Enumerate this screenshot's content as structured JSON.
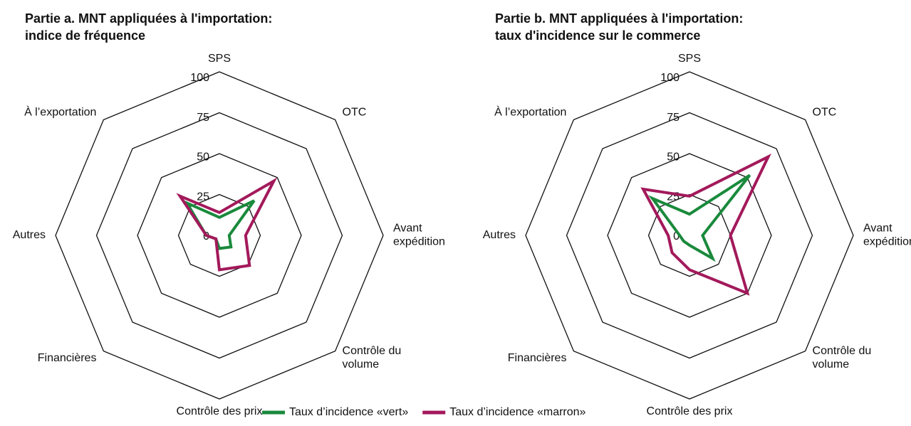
{
  "chart_data": [
    {
      "type": "radar",
      "title": "Partie a. MNT appliquées à l'importation:",
      "subtitle": "indice de fréquence",
      "categories": [
        "SPS",
        "OTC",
        "Avant expédition",
        "Contrôle du volume",
        "Contrôle des prix",
        "Financières",
        "Autres",
        "À l’exportation"
      ],
      "ylim": [
        0,
        100
      ],
      "yticks": [
        0,
        25,
        50,
        75,
        100
      ],
      "series": [
        {
          "name": "Taux d’incidence «vert»",
          "color": "#1a8a3c",
          "values": [
            11,
            30,
            6,
            10,
            8,
            3,
            8,
            28
          ]
        },
        {
          "name": "Taux d’incidence «marron»",
          "color": "#a3195b",
          "values": [
            14,
            47,
            16,
            26,
            21,
            3,
            8,
            34
          ]
        }
      ]
    },
    {
      "type": "radar",
      "title": "Partie b. MNT appliquées à l'importation:",
      "subtitle": "taux d'incidence sur le commerce",
      "categories": [
        "SPS",
        "OTC",
        "Avant expédition",
        "Contrôle du volume",
        "Contrôle des prix",
        "Financières",
        "Autres",
        "À l’exportation"
      ],
      "ylim": [
        0,
        100
      ],
      "yticks": [
        0,
        25,
        50,
        75,
        100
      ],
      "series": [
        {
          "name": "Taux d’incidence «vert»",
          "color": "#1a8a3c",
          "values": [
            13,
            52,
            8,
            20,
            6,
            5,
            6,
            32
          ]
        },
        {
          "name": "Taux d’incidence «marron»",
          "color": "#a3195b",
          "values": [
            24,
            68,
            25,
            50,
            21,
            15,
            13,
            40
          ]
        }
      ]
    }
  ]
}
